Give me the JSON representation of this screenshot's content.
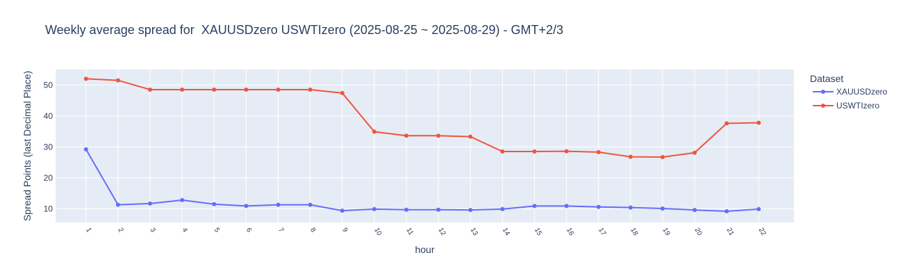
{
  "chart_data": {
    "type": "line",
    "title": "Weekly average spread for  XAUUSDzero USWTIzero (2025-08-25 ~ 2025-08-29) - GMT+2/3",
    "xlabel": "hour",
    "ylabel": "Spread Points (last Decimal Place)",
    "ylim": [
      5.6,
      55
    ],
    "yticks": [
      10,
      20,
      30,
      40,
      50
    ],
    "grid": true,
    "legend_title": "Dataset",
    "legend_position": "right",
    "x": [
      1,
      2,
      3,
      4,
      5,
      6,
      7,
      8,
      9,
      10,
      11,
      12,
      13,
      14,
      15,
      16,
      17,
      18,
      19,
      20,
      21,
      22
    ],
    "series": [
      {
        "name": "XAUUSDzero",
        "color": "#636efa",
        "values": [
          29.2,
          11.3,
          11.7,
          12.8,
          11.5,
          10.9,
          11.3,
          11.3,
          9.4,
          9.9,
          9.7,
          9.7,
          9.6,
          9.9,
          10.9,
          10.9,
          10.6,
          10.4,
          10.1,
          9.6,
          9.2,
          9.9
        ]
      },
      {
        "name": "USWTIzero",
        "color": "#ef553b",
        "values": [
          52.0,
          51.5,
          48.5,
          48.5,
          48.5,
          48.5,
          48.5,
          48.5,
          47.4,
          34.9,
          33.6,
          33.6,
          33.3,
          28.5,
          28.5,
          28.6,
          28.3,
          26.8,
          26.7,
          28.1,
          37.6,
          37.8
        ]
      }
    ]
  }
}
